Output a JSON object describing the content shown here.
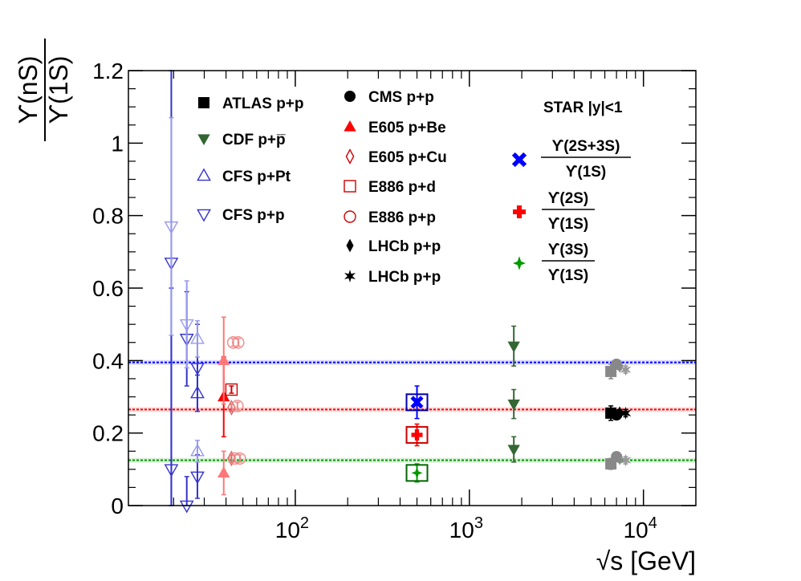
{
  "chart_data": {
    "type": "scatter",
    "title": "",
    "xlabel": "√s [GeV]",
    "ylabel_num": "ϒ(nS)",
    "ylabel_den": "ϒ(1S)",
    "x_scale": "log",
    "xlim": [
      11,
      20000
    ],
    "ylim": [
      0,
      1.2
    ],
    "grid": false,
    "x_ticks": [
      {
        "value": 100,
        "base": "10",
        "exp": "2"
      },
      {
        "value": 1000,
        "base": "10",
        "exp": "3"
      },
      {
        "value": 10000,
        "base": "10",
        "exp": "4"
      }
    ],
    "y_ticks": [
      {
        "value": 0,
        "label": "0"
      },
      {
        "value": 0.2,
        "label": "0.2"
      },
      {
        "value": 0.4,
        "label": "0.4"
      },
      {
        "value": 0.6,
        "label": "0.6"
      },
      {
        "value": 0.8,
        "label": "0.8"
      },
      {
        "value": 1.0,
        "label": "1"
      },
      {
        "value": 1.2,
        "label": "1.2"
      }
    ],
    "star_heading": "STAR |y|<1",
    "legend": [
      {
        "label": "ATLAS p+p",
        "marker": "square",
        "color": "#000000"
      },
      {
        "label": "CDF p+p̅",
        "marker": "triangle-down",
        "color": "#336633"
      },
      {
        "label": "CFS p+Pt",
        "marker": "triangle-up-open",
        "color": "#3333cc"
      },
      {
        "label": "CFS p+p",
        "marker": "triangle-down-open",
        "color": "#3333cc"
      },
      {
        "label": "CMS p+p",
        "marker": "circle",
        "color": "#000000"
      },
      {
        "label": "E605 p+Be",
        "marker": "triangle-up",
        "color": "#ff0000"
      },
      {
        "label": "E605 p+Cu",
        "marker": "diamond-open",
        "color": "#cc0000"
      },
      {
        "label": "E886 p+d",
        "marker": "square-open",
        "color": "#cc0000"
      },
      {
        "label": "E886 p+p",
        "marker": "circle-open",
        "color": "#cc0000"
      },
      {
        "label": "LHCb p+p",
        "marker": "diamond",
        "color": "#000000"
      },
      {
        "label": "LHCb p+p",
        "marker": "star",
        "color": "#000000"
      }
    ],
    "star_legend": [
      {
        "num": "ϒ(2S+3S)",
        "den": "ϒ(1S)",
        "marker": "x",
        "color": "#0000ff"
      },
      {
        "num": "ϒ(2S)",
        "den": "ϒ(1S)",
        "marker": "cross",
        "color": "#ff0000"
      },
      {
        "num": "ϒ(3S)",
        "den": "ϒ(1S)",
        "marker": "star4",
        "color": "#009900"
      }
    ],
    "fit_lines": [
      {
        "name": "ϒ(2S+3S)/ϒ(1S)",
        "y": 0.395,
        "color": "#0000ff"
      },
      {
        "name": "ϒ(2S)/ϒ(1S)",
        "y": 0.265,
        "color": "#ff0000"
      },
      {
        "name": "ϒ(3S)/ϒ(1S)",
        "y": 0.125,
        "color": "#009900"
      }
    ],
    "series": [
      {
        "name": "CFS p+p",
        "marker": "triangle-down-open",
        "color": "#3333cc",
        "points": [
          {
            "x": 19.4,
            "y": 0.67,
            "err": 1.3
          },
          {
            "x": 19.4,
            "y": 0.1,
            "err": 0.5
          },
          {
            "x": 23.8,
            "y": 0.46,
            "err": 0.13
          },
          {
            "x": 23.8,
            "y": 0.0,
            "err": 0.08
          },
          {
            "x": 27.4,
            "y": 0.38,
            "err": 0.12
          },
          {
            "x": 27.4,
            "y": 0.08,
            "err": 0.06
          }
        ]
      },
      {
        "name": "CFS p+p (light)",
        "marker": "triangle-down-open",
        "color": "#9999ee",
        "points": [
          {
            "x": 19.4,
            "y": 0.77,
            "err": 0.3
          },
          {
            "x": 23.8,
            "y": 0.5,
            "err": 0.12
          }
        ]
      },
      {
        "name": "CFS p+Pt",
        "marker": "triangle-up-open",
        "color": "#3333cc",
        "points": [
          {
            "x": 27.4,
            "y": 0.31,
            "err": 0.05
          }
        ]
      },
      {
        "name": "CFS p+Pt (light)",
        "marker": "triangle-up-open",
        "color": "#9999ee",
        "points": [
          {
            "x": 27.4,
            "y": 0.46,
            "err": 0.05
          },
          {
            "x": 27.4,
            "y": 0.15,
            "err": 0.03
          }
        ]
      },
      {
        "name": "E605 p+Be",
        "marker": "triangle-up",
        "color": "#ff0000",
        "points": [
          {
            "x": 38.8,
            "y": 0.3,
            "err": 0.11
          }
        ]
      },
      {
        "name": "E605 p+Be (light)",
        "marker": "triangle-up",
        "color": "#ff7777",
        "points": [
          {
            "x": 38.8,
            "y": 0.4,
            "err": 0.12
          },
          {
            "x": 38.8,
            "y": 0.09,
            "err": 0.06
          }
        ]
      },
      {
        "name": "E886 p+d",
        "marker": "square-open",
        "color": "#cc0000",
        "points": [
          {
            "x": 43,
            "y": 0.32,
            "err": 0.01
          }
        ]
      },
      {
        "name": "E605 p+Cu",
        "marker": "diamond-open",
        "color": "#dd6666",
        "points": [
          {
            "x": 43,
            "y": 0.27,
            "err": 0.01
          },
          {
            "x": 43,
            "y": 0.13,
            "err": 0.01
          }
        ]
      },
      {
        "name": "E886 p+p",
        "marker": "circle-open",
        "color": "#ee8888",
        "points": [
          {
            "x": 46.5,
            "y": 0.275,
            "err": 0.01
          },
          {
            "x": 44,
            "y": 0.45,
            "err": 0.01
          },
          {
            "x": 47,
            "y": 0.45,
            "err": 0.01
          },
          {
            "x": 45,
            "y": 0.13,
            "err": 0.01
          },
          {
            "x": 48,
            "y": 0.13,
            "err": 0.01
          }
        ]
      },
      {
        "name": "STAR ϒ(2S+3S)/ϒ(1S)",
        "marker": "x",
        "color": "#0000ff",
        "points": [
          {
            "x": 500,
            "y": 0.285,
            "err": 0.045
          }
        ]
      },
      {
        "name": "STAR ϒ(2S)/ϒ(1S)",
        "marker": "cross",
        "color": "#ff0000",
        "points": [
          {
            "x": 500,
            "y": 0.195,
            "err": 0.03
          }
        ]
      },
      {
        "name": "STAR ϒ(3S)/ϒ(1S)",
        "marker": "star4",
        "color": "#009900",
        "points": [
          {
            "x": 500,
            "y": 0.09,
            "err": 0.025
          }
        ]
      },
      {
        "name": "CDF p+p̅",
        "marker": "triangle-down",
        "color": "#336633",
        "points": [
          {
            "x": 1800,
            "y": 0.44,
            "err": 0.055
          },
          {
            "x": 1800,
            "y": 0.28,
            "err": 0.04
          },
          {
            "x": 1800,
            "y": 0.155,
            "err": 0.035
          }
        ]
      },
      {
        "name": "ATLAS p+p",
        "marker": "square",
        "color": "#000000",
        "points": [
          {
            "x": 6500,
            "y": 0.255,
            "err": 0.02
          }
        ]
      },
      {
        "name": "ATLAS p+p (grey)",
        "marker": "square",
        "color": "#888888",
        "points": [
          {
            "x": 6500,
            "y": 0.37,
            "err": 0.02
          },
          {
            "x": 6500,
            "y": 0.115,
            "err": 0.015
          }
        ]
      },
      {
        "name": "CMS p+p",
        "marker": "circle",
        "color": "#000000",
        "points": [
          {
            "x": 7000,
            "y": 0.25,
            "err": 0.01
          }
        ]
      },
      {
        "name": "CMS p+p (grey)",
        "marker": "circle",
        "color": "#888888",
        "points": [
          {
            "x": 7000,
            "y": 0.39,
            "err": 0.01
          },
          {
            "x": 7000,
            "y": 0.135,
            "err": 0.01
          }
        ]
      },
      {
        "name": "LHCb p+p",
        "marker": "diamond",
        "color": "#000000",
        "points": [
          {
            "x": 7300,
            "y": 0.255,
            "err": 0.01
          }
        ]
      },
      {
        "name": "LHCb p+p (grey)",
        "marker": "diamond",
        "color": "#888888",
        "points": [
          {
            "x": 7300,
            "y": 0.385,
            "err": 0.01
          },
          {
            "x": 7300,
            "y": 0.13,
            "err": 0.01
          }
        ]
      },
      {
        "name": "LHCb p+p",
        "marker": "star",
        "color": "#000000",
        "points": [
          {
            "x": 7900,
            "y": 0.255,
            "err": 0.01
          }
        ]
      },
      {
        "name": "LHCb p+p (grey)",
        "marker": "star",
        "color": "#999999",
        "points": [
          {
            "x": 7900,
            "y": 0.375,
            "err": 0.01
          },
          {
            "x": 7900,
            "y": 0.125,
            "err": 0.01
          }
        ]
      }
    ]
  }
}
